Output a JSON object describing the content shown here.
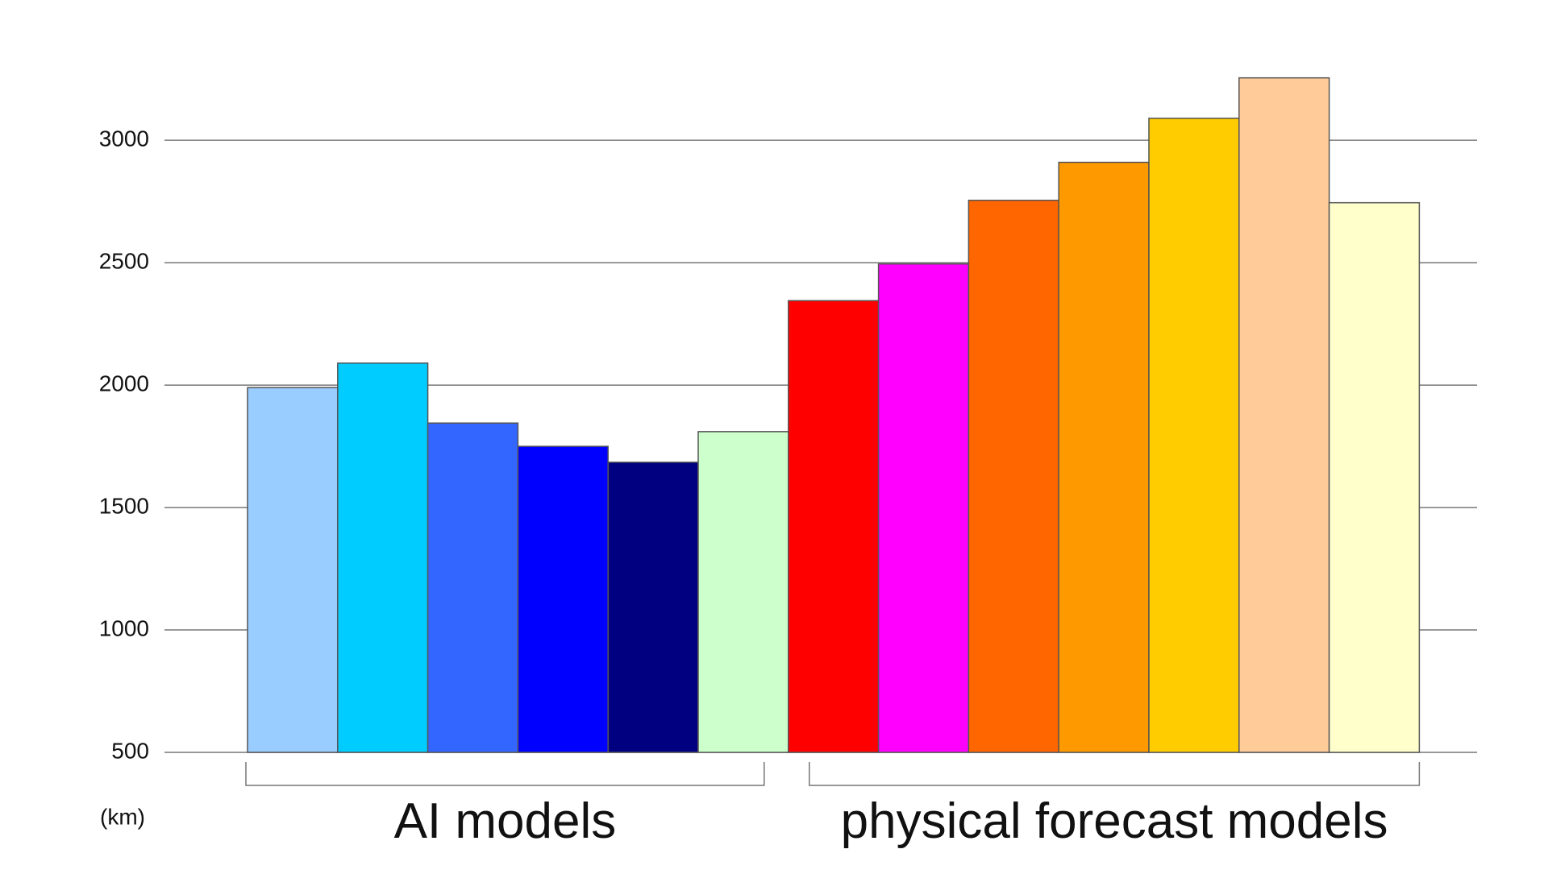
{
  "chart_data": {
    "type": "bar",
    "y_unit_label": "(km)",
    "ylim": [
      500,
      3300
    ],
    "yticks": [
      500,
      1000,
      1500,
      2000,
      2500,
      3000
    ],
    "grid": true,
    "series": [
      {
        "name": "AI models",
        "values": [
          1990,
          2090,
          1845,
          1750,
          1685,
          1810
        ],
        "colors": [
          "#99ccff",
          "#00ccff",
          "#3366ff",
          "#0000ff",
          "#000080",
          "#ccffcc"
        ]
      },
      {
        "name": "physical forecast models",
        "values": [
          2345,
          2495,
          2755,
          2910,
          3090,
          3255,
          2745
        ],
        "colors": [
          "#ff0000",
          "#ff00ff",
          "#ff6600",
          "#ff9900",
          "#ffcc00",
          "#ffcc99",
          "#ffffcc"
        ]
      }
    ]
  }
}
